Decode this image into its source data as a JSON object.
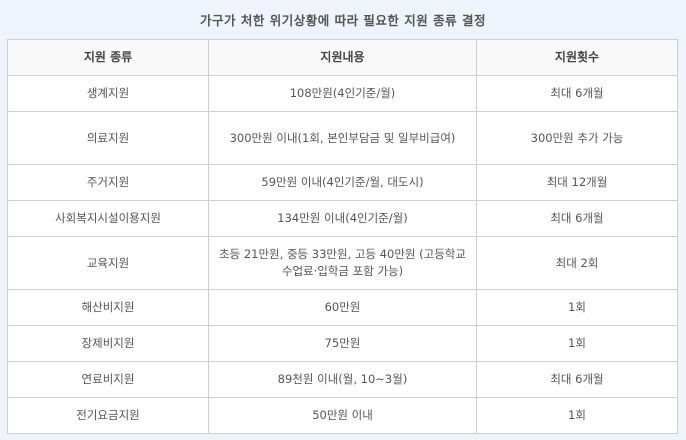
{
  "title": "가구가 처한 위기상황에 따라 필요한 지원 종류 결정",
  "table": {
    "headers": [
      "지원 종류",
      "지원내용",
      "지원횟수"
    ],
    "rows": [
      [
        "생계지원",
        "108만원(4인기준/월)",
        "최대 6개월"
      ],
      [
        "의료지원",
        "300만원 이내(1회, 본인부담금 및 일부비급여)",
        "300만원 추가 가능"
      ],
      [
        "주거지원",
        "59만원 이내(4인기준/월, 대도시)",
        "최대 12개월"
      ],
      [
        "사회복지시설이용지원",
        "134만원 이내(4인기준/월)",
        "최대 6개월"
      ],
      [
        "교육지원",
        "초등 21만원, 중등 33만원, 고등 40만원 (고등학교 수업료·입학금 포함 가능)",
        "최대 2회"
      ],
      [
        "해산비지원",
        "60만원",
        "1회"
      ],
      [
        "장제비지원",
        "75만원",
        "1회"
      ],
      [
        "연료비지원",
        "89천원 이내(월, 10~3월)",
        "최대 6개월"
      ],
      [
        "전기요금지원",
        "50만원 이내",
        "1회"
      ]
    ]
  }
}
